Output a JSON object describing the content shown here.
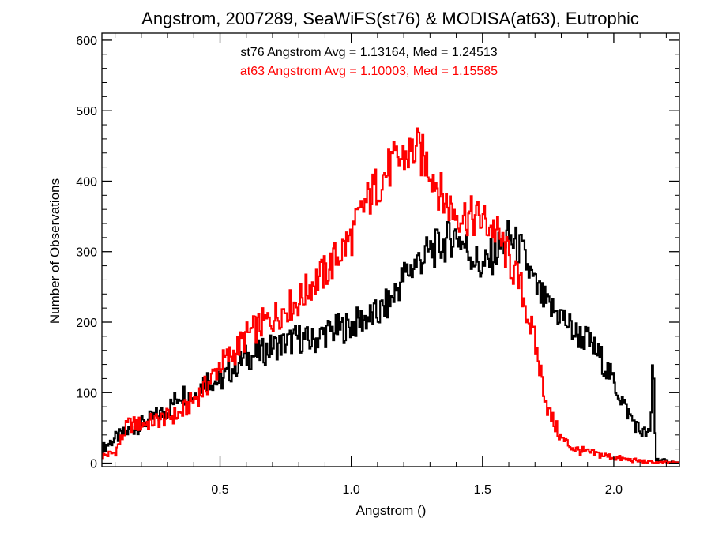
{
  "chart_data": {
    "type": "line",
    "title": "Angstrom, 2007289, SeaWiFS(st76) & MODISA(at63), Eutrophic",
    "xlabel": "Angstrom ()",
    "ylabel": "Number of Observations",
    "xlim": [
      0.05,
      2.25
    ],
    "ylim": [
      -5,
      610
    ],
    "xticks": [
      0.5,
      1.0,
      1.5,
      2.0
    ],
    "xtick_labels": [
      "0.5",
      "1.0",
      "1.5",
      "2.0"
    ],
    "yticks": [
      0,
      100,
      200,
      300,
      400,
      500,
      600
    ],
    "ytick_labels": [
      "0",
      "100",
      "200",
      "300",
      "400",
      "500",
      "600"
    ],
    "grid": false,
    "step": true,
    "annotations": [
      {
        "text": "st76 Angstrom Avg = 1.13164, Med = 1.24513",
        "color": "#000000"
      },
      {
        "text": "at63 Angstrom Avg = 1.10003, Med = 1.15585",
        "color": "#ff0000"
      }
    ],
    "series": [
      {
        "color": "#000000",
        "points": [
          [
            0.05,
            20
          ],
          [
            0.1,
            35
          ],
          [
            0.2,
            55
          ],
          [
            0.3,
            75
          ],
          [
            0.35,
            100
          ],
          [
            0.4,
            95
          ],
          [
            0.45,
            120
          ],
          [
            0.5,
            115
          ],
          [
            0.55,
            135
          ],
          [
            0.6,
            150
          ],
          [
            0.65,
            155
          ],
          [
            0.7,
            165
          ],
          [
            0.75,
            170
          ],
          [
            0.8,
            178
          ],
          [
            0.85,
            172
          ],
          [
            0.9,
            185
          ],
          [
            0.95,
            190
          ],
          [
            1.0,
            195
          ],
          [
            1.05,
            205
          ],
          [
            1.1,
            210
          ],
          [
            1.15,
            230
          ],
          [
            1.2,
            265
          ],
          [
            1.25,
            285
          ],
          [
            1.3,
            300
          ],
          [
            1.35,
            310
          ],
          [
            1.4,
            325
          ],
          [
            1.45,
            300
          ],
          [
            1.5,
            275
          ],
          [
            1.55,
            300
          ],
          [
            1.6,
            320
          ],
          [
            1.65,
            300
          ],
          [
            1.7,
            250
          ],
          [
            1.75,
            220
          ],
          [
            1.8,
            210
          ],
          [
            1.85,
            185
          ],
          [
            1.9,
            175
          ],
          [
            1.95,
            150
          ],
          [
            2.0,
            115
          ],
          [
            2.05,
            75
          ],
          [
            2.1,
            45
          ],
          [
            2.14,
            40
          ],
          [
            2.15,
            165
          ],
          [
            2.16,
            5
          ],
          [
            2.25,
            0
          ]
        ]
      },
      {
        "color": "#ff0000",
        "points": [
          [
            0.05,
            10
          ],
          [
            0.1,
            15
          ],
          [
            0.15,
            55
          ],
          [
            0.2,
            55
          ],
          [
            0.3,
            65
          ],
          [
            0.35,
            70
          ],
          [
            0.4,
            90
          ],
          [
            0.45,
            110
          ],
          [
            0.5,
            140
          ],
          [
            0.55,
            155
          ],
          [
            0.6,
            180
          ],
          [
            0.65,
            195
          ],
          [
            0.7,
            205
          ],
          [
            0.75,
            220
          ],
          [
            0.8,
            230
          ],
          [
            0.85,
            255
          ],
          [
            0.9,
            270
          ],
          [
            0.95,
            295
          ],
          [
            1.0,
            320
          ],
          [
            1.05,
            365
          ],
          [
            1.1,
            395
          ],
          [
            1.15,
            420
          ],
          [
            1.2,
            435
          ],
          [
            1.25,
            445
          ],
          [
            1.3,
            420
          ],
          [
            1.35,
            375
          ],
          [
            1.4,
            355
          ],
          [
            1.45,
            350
          ],
          [
            1.5,
            345
          ],
          [
            1.55,
            330
          ],
          [
            1.6,
            290
          ],
          [
            1.65,
            245
          ],
          [
            1.7,
            170
          ],
          [
            1.75,
            75
          ],
          [
            1.8,
            35
          ],
          [
            1.85,
            20
          ],
          [
            1.9,
            15
          ],
          [
            1.95,
            12
          ],
          [
            2.0,
            8
          ],
          [
            2.05,
            5
          ],
          [
            2.1,
            3
          ],
          [
            2.15,
            1
          ],
          [
            2.25,
            0
          ]
        ]
      }
    ]
  }
}
